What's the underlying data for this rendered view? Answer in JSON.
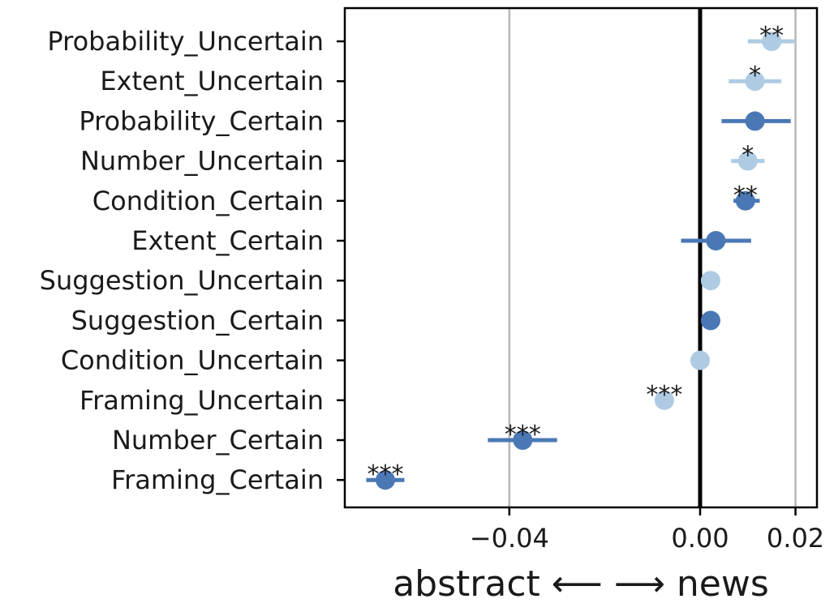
{
  "chart_data": {
    "type": "scatter",
    "subtype": "dot-and-whisker",
    "title": "",
    "xlabel": "abstract ⟵ ⟶ news",
    "ylabel": "",
    "xlim": [
      -0.0745,
      0.0245
    ],
    "xticks": [
      -0.04,
      0.0,
      0.02
    ],
    "xtick_labels": [
      "−0.04",
      "0.00",
      "0.02"
    ],
    "vlines": [
      -0.04,
      0.0,
      0.02
    ],
    "zero_line_bold": true,
    "colors": {
      "certain": "#4a78b5",
      "uncertain": "#aecbe3"
    },
    "points": [
      {
        "label": "Probability_Uncertain",
        "group": "uncertain",
        "x": 0.015,
        "lo": 0.01,
        "hi": 0.02,
        "sig": "**"
      },
      {
        "label": "Extent_Uncertain",
        "group": "uncertain",
        "x": 0.0115,
        "lo": 0.006,
        "hi": 0.017,
        "sig": "*"
      },
      {
        "label": "Probability_Certain",
        "group": "certain",
        "x": 0.0115,
        "lo": 0.0045,
        "hi": 0.019,
        "sig": ""
      },
      {
        "label": "Number_Uncertain",
        "group": "uncertain",
        "x": 0.01,
        "lo": 0.0065,
        "hi": 0.0135,
        "sig": "*"
      },
      {
        "label": "Condition_Certain",
        "group": "certain",
        "x": 0.0095,
        "lo": 0.007,
        "hi": 0.0125,
        "sig": "**"
      },
      {
        "label": "Extent_Certain",
        "group": "certain",
        "x": 0.0033,
        "lo": -0.004,
        "hi": 0.0107,
        "sig": ""
      },
      {
        "label": "Suggestion_Uncertain",
        "group": "uncertain",
        "x": 0.0022,
        "lo": 0.0012,
        "hi": 0.003,
        "sig": ""
      },
      {
        "label": "Suggestion_Certain",
        "group": "certain",
        "x": 0.0022,
        "lo": 0.001,
        "hi": 0.0042,
        "sig": ""
      },
      {
        "label": "Condition_Uncertain",
        "group": "uncertain",
        "x": 0.0,
        "lo": -0.001,
        "hi": 0.001,
        "sig": ""
      },
      {
        "label": "Framing_Uncertain",
        "group": "uncertain",
        "x": -0.0075,
        "lo": -0.0085,
        "hi": -0.0065,
        "sig": "***"
      },
      {
        "label": "Number_Certain",
        "group": "certain",
        "x": -0.0372,
        "lo": -0.0445,
        "hi": -0.03,
        "sig": "***"
      },
      {
        "label": "Framing_Certain",
        "group": "certain",
        "x": -0.066,
        "lo": -0.07,
        "hi": -0.062,
        "sig": "***"
      }
    ]
  }
}
